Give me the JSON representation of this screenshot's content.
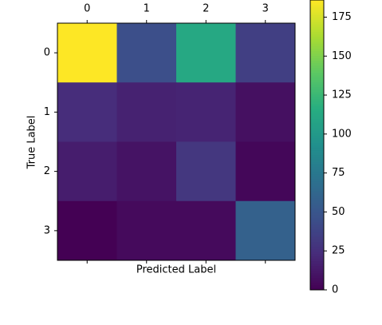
{
  "chart_data": {
    "type": "heatmap",
    "x_categories": [
      0,
      1,
      2,
      3
    ],
    "y_categories": [
      0,
      1,
      2,
      3
    ],
    "xlabel": "Predicted Label",
    "ylabel": "True Label",
    "values": [
      [
        186,
        45,
        112,
        35
      ],
      [
        24,
        18,
        19,
        8
      ],
      [
        15,
        10,
        30,
        3
      ],
      [
        0,
        5,
        5,
        58
      ]
    ],
    "colormap": "viridis",
    "clim": [
      0,
      186
    ],
    "cticks": [
      0,
      25,
      50,
      75,
      100,
      125,
      150,
      175
    ]
  }
}
